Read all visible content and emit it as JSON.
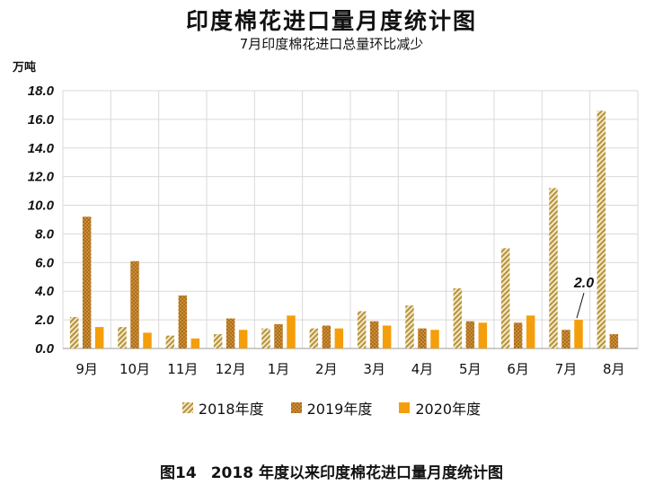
{
  "title": "印度棉花进口量月度统计图",
  "subtitle": "7月印度棉花进口总量环比减少",
  "unit": "万吨",
  "caption": {
    "figure": "图14",
    "text": "2018 年度以来印度棉花进口量月度统计图"
  },
  "colors": {
    "s2018": "#b5923a",
    "s2019": "#b06d16",
    "s2020": "#f59e0b",
    "grid": "#d9d9d9"
  },
  "chart_data": {
    "type": "bar",
    "categories": [
      "9月",
      "10月",
      "11月",
      "12月",
      "1月",
      "2月",
      "3月",
      "4月",
      "5月",
      "6月",
      "7月",
      "8月"
    ],
    "series": [
      {
        "name": "2018年度",
        "values": [
          2.2,
          1.5,
          0.9,
          1.0,
          1.4,
          1.4,
          2.6,
          3.0,
          4.2,
          7.0,
          11.2,
          16.6
        ]
      },
      {
        "name": "2019年度",
        "values": [
          9.2,
          6.1,
          3.7,
          2.1,
          1.7,
          1.6,
          1.9,
          1.4,
          1.9,
          1.8,
          1.3,
          1.0
        ]
      },
      {
        "name": "2020年度",
        "values": [
          1.5,
          1.1,
          0.7,
          1.3,
          2.3,
          1.4,
          1.6,
          1.3,
          1.8,
          2.3,
          2.0,
          null
        ]
      }
    ],
    "ylim": [
      0,
      18
    ],
    "yticks": [
      "0.0",
      "2.0",
      "4.0",
      "6.0",
      "8.0",
      "10.0",
      "12.0",
      "14.0",
      "16.0",
      "18.0"
    ],
    "grid": true,
    "legend_position": "bottom",
    "annotation": {
      "text": "2.0",
      "category": "7月",
      "series": "2020年度"
    }
  }
}
